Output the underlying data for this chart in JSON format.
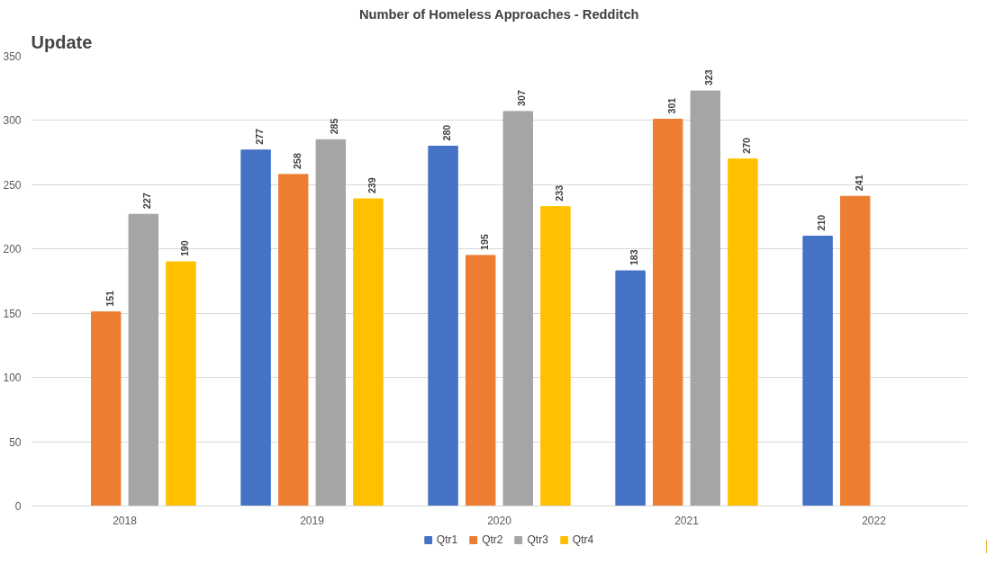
{
  "chart_data": {
    "type": "bar",
    "title": "Number of Homeless Approaches - Redditch",
    "annotations": [
      "Update"
    ],
    "categories": [
      "2018",
      "2019",
      "2020",
      "2021",
      "2022"
    ],
    "series": [
      {
        "name": "Qtr1",
        "color": "#4472c4",
        "values": [
          null,
          277,
          280,
          183,
          210
        ]
      },
      {
        "name": "Qtr2",
        "color": "#ed7d31",
        "values": [
          151,
          258,
          195,
          301,
          241
        ]
      },
      {
        "name": "Qtr3",
        "color": "#a5a5a5",
        "values": [
          227,
          285,
          307,
          323,
          null
        ]
      },
      {
        "name": "Qtr4",
        "color": "#ffc000",
        "values": [
          190,
          239,
          233,
          270,
          null
        ]
      }
    ],
    "ylim": [
      0,
      350
    ],
    "yticks": [
      0,
      50,
      100,
      150,
      200,
      250,
      300,
      350
    ],
    "grid": "y",
    "legend": "bottom",
    "data_labels": true
  }
}
